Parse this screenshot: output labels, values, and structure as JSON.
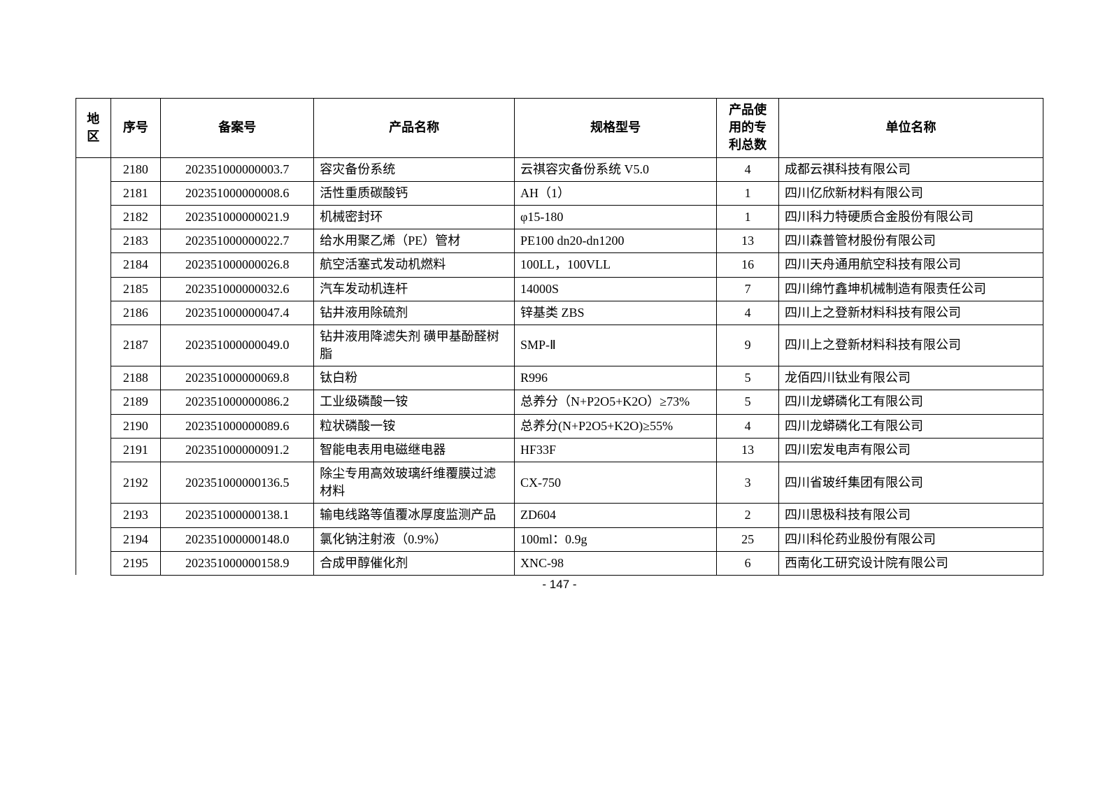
{
  "headers": {
    "region": "地区",
    "seq": "序号",
    "filing": "备案号",
    "product": "产品名称",
    "spec": "规格型号",
    "patent": "产品使用的专利总数",
    "unit": "单位名称"
  },
  "rows": [
    {
      "seq": "2180",
      "filing": "202351000000003.7",
      "product": "容灾备份系统",
      "spec": "云祺容灾备份系统 V5.0",
      "patent": "4",
      "unit": "成都云祺科技有限公司"
    },
    {
      "seq": "2181",
      "filing": "202351000000008.6",
      "product": "活性重质碳酸钙",
      "spec": "AH（1）",
      "patent": "1",
      "unit": "四川亿欣新材料有限公司"
    },
    {
      "seq": "2182",
      "filing": "202351000000021.9",
      "product": "机械密封环",
      "spec": "φ15-180",
      "patent": "1",
      "unit": "四川科力特硬质合金股份有限公司"
    },
    {
      "seq": "2183",
      "filing": "202351000000022.7",
      "product": "给水用聚乙烯（PE）管材",
      "spec": "PE100 dn20-dn1200",
      "patent": "13",
      "unit": "四川森普管材股份有限公司"
    },
    {
      "seq": "2184",
      "filing": "202351000000026.8",
      "product": "航空活塞式发动机燃料",
      "spec": "100LL，100VLL",
      "patent": "16",
      "unit": "四川天舟通用航空科技有限公司"
    },
    {
      "seq": "2185",
      "filing": "202351000000032.6",
      "product": "汽车发动机连杆",
      "spec": "14000S",
      "patent": "7",
      "unit": "四川绵竹鑫坤机械制造有限责任公司"
    },
    {
      "seq": "2186",
      "filing": "202351000000047.4",
      "product": "钻井液用除硫剂",
      "spec": "锌基类   ZBS",
      "patent": "4",
      "unit": "四川上之登新材料科技有限公司"
    },
    {
      "seq": "2187",
      "filing": "202351000000049.0",
      "product": "钻井液用降滤失剂 磺甲基酚醛树脂",
      "spec": "SMP-Ⅱ",
      "patent": "9",
      "unit": "四川上之登新材料科技有限公司"
    },
    {
      "seq": "2188",
      "filing": "202351000000069.8",
      "product": "钛白粉",
      "spec": "R996",
      "patent": "5",
      "unit": "龙佰四川钛业有限公司"
    },
    {
      "seq": "2189",
      "filing": "202351000000086.2",
      "product": "工业级磷酸一铵",
      "spec": "总养分（N+P2O5+K2O）≥73%",
      "patent": "5",
      "unit": "四川龙蟒磷化工有限公司"
    },
    {
      "seq": "2190",
      "filing": "202351000000089.6",
      "product": "粒状磷酸一铵",
      "spec": "总养分(N+P2O5+K2O)≥55%",
      "patent": "4",
      "unit": "四川龙蟒磷化工有限公司"
    },
    {
      "seq": "2191",
      "filing": "202351000000091.2",
      "product": "智能电表用电磁继电器",
      "spec": "HF33F",
      "patent": "13",
      "unit": "四川宏发电声有限公司"
    },
    {
      "seq": "2192",
      "filing": "202351000000136.5",
      "product": "除尘专用高效玻璃纤维覆膜过滤材料",
      "spec": "CX-750",
      "patent": "3",
      "unit": "四川省玻纤集团有限公司"
    },
    {
      "seq": "2193",
      "filing": "202351000000138.1",
      "product": "输电线路等值覆冰厚度监测产品",
      "spec": "ZD604",
      "patent": "2",
      "unit": "四川思极科技有限公司"
    },
    {
      "seq": "2194",
      "filing": "202351000000148.0",
      "product": "氯化钠注射液（0.9%）",
      "spec": "100ml：0.9g",
      "patent": "25",
      "unit": "四川科伦药业股份有限公司"
    },
    {
      "seq": "2195",
      "filing": "202351000000158.9",
      "product": "合成甲醇催化剂",
      "spec": "XNC-98",
      "patent": "6",
      "unit": "西南化工研究设计院有限公司"
    }
  ],
  "pageNumber": "- 147 -",
  "styling": {
    "bodyBackground": "#ffffff",
    "borderColor": "#000000",
    "textColor": "#000000",
    "fontSize": 18,
    "borderWidth": 1.5,
    "fontFamily": "SimSun"
  }
}
